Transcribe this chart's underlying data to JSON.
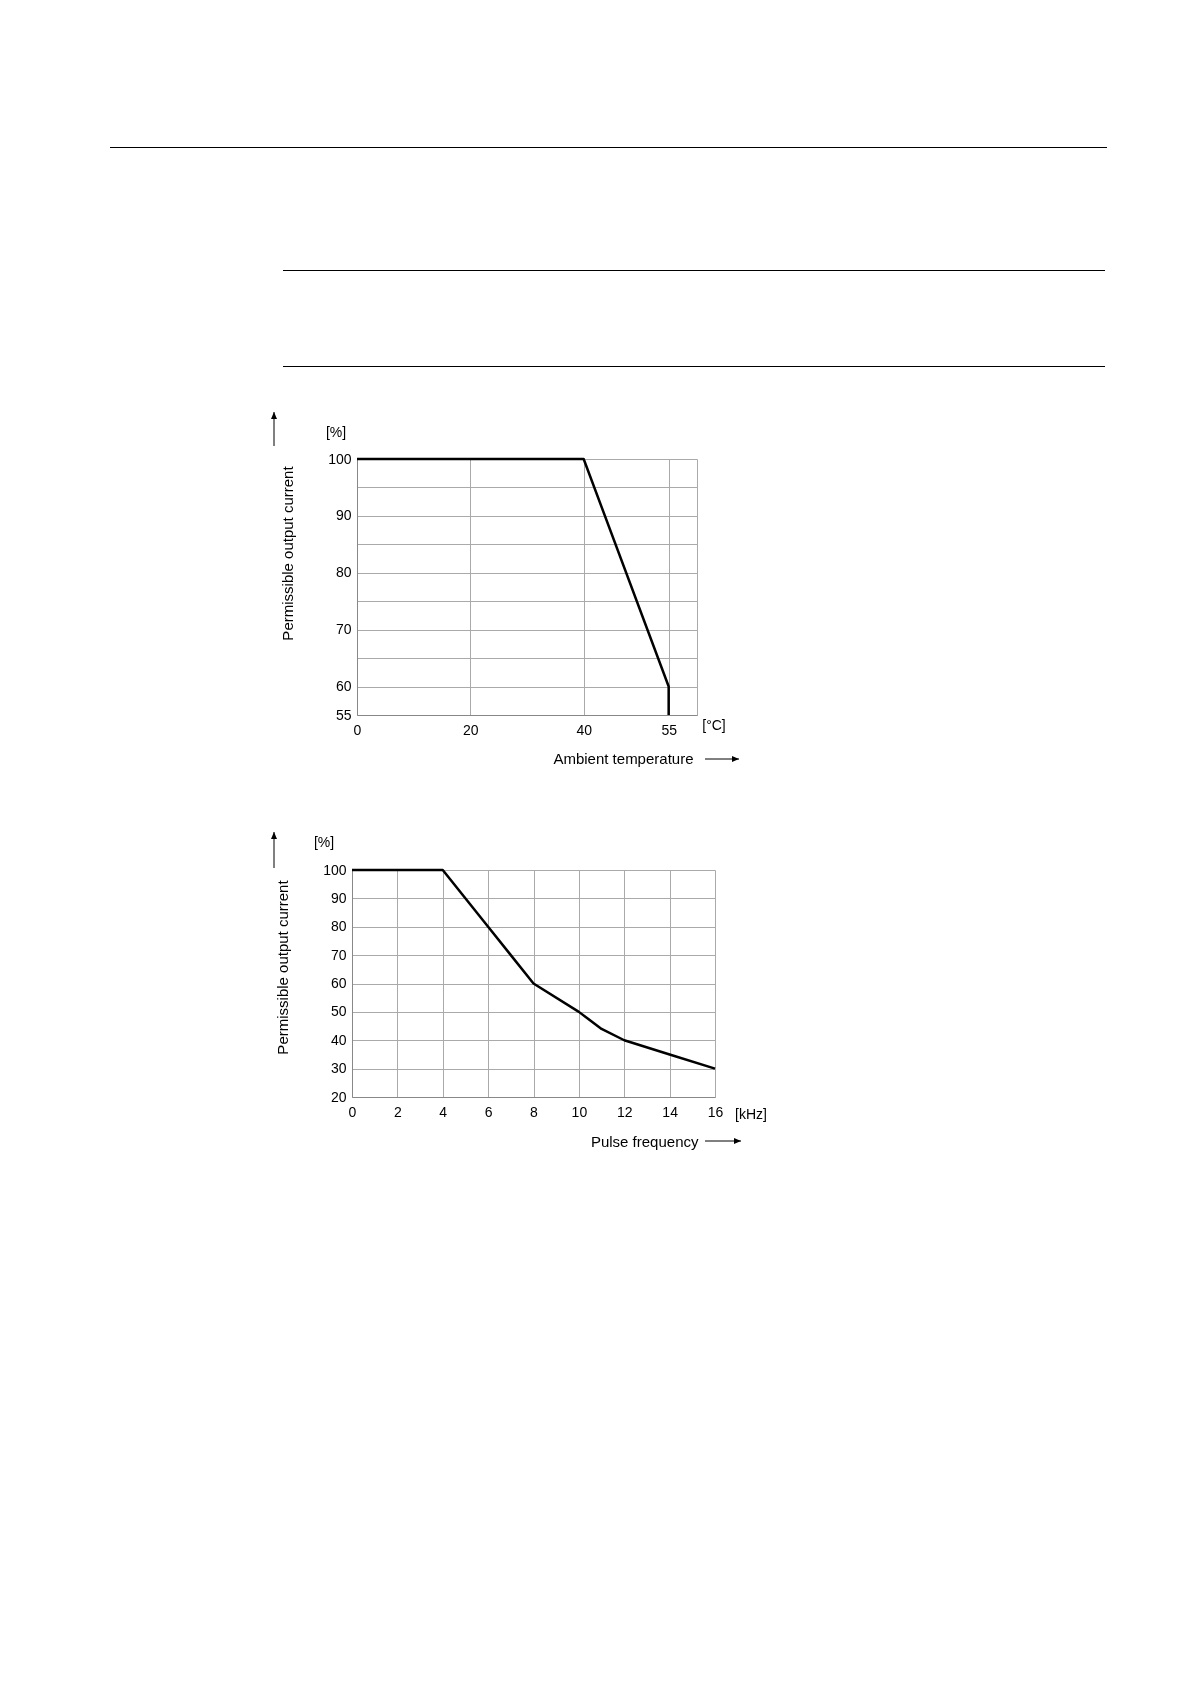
{
  "chart_data": [
    {
      "type": "line",
      "xlabel": "Ambient temperature",
      "ylabel": "Permissible output current",
      "annotations": [
        "[%]",
        "[°C]"
      ],
      "x": [
        0,
        40,
        55,
        55
      ],
      "values": [
        100,
        100,
        60,
        55
      ],
      "color": "#000000",
      "line_style": "solid",
      "xlim": [
        0,
        60
      ],
      "xticks": [
        0,
        20,
        40,
        55,
        {
          "value": 60,
          "label": null
        }
      ],
      "ylim": [
        55,
        100
      ],
      "yticks": [
        55,
        60,
        {
          "value": 65,
          "label": null
        },
        70,
        {
          "value": 75,
          "label": null
        },
        80,
        {
          "value": 85,
          "label": null
        },
        90,
        {
          "value": 95,
          "label": null
        },
        100
      ],
      "grid": true
    },
    {
      "type": "line",
      "xlabel": "Pulse frequency",
      "ylabel": "Permissible output current",
      "annotations": [
        "[%]",
        "[kHz]"
      ],
      "x": [
        0,
        4,
        6,
        7,
        8,
        10,
        11,
        12,
        14,
        16
      ],
      "values": [
        100,
        100,
        80,
        70,
        60,
        50,
        44,
        40,
        35,
        30
      ],
      "color": "#000000",
      "line_style": "solid",
      "xlim": [
        0,
        16
      ],
      "xticks": [
        0,
        2,
        4,
        6,
        8,
        10,
        12,
        14,
        16
      ],
      "ylim": [
        20,
        100
      ],
      "yticks": [
        20,
        30,
        40,
        50,
        60,
        70,
        80,
        90,
        100
      ],
      "grid": true
    }
  ]
}
